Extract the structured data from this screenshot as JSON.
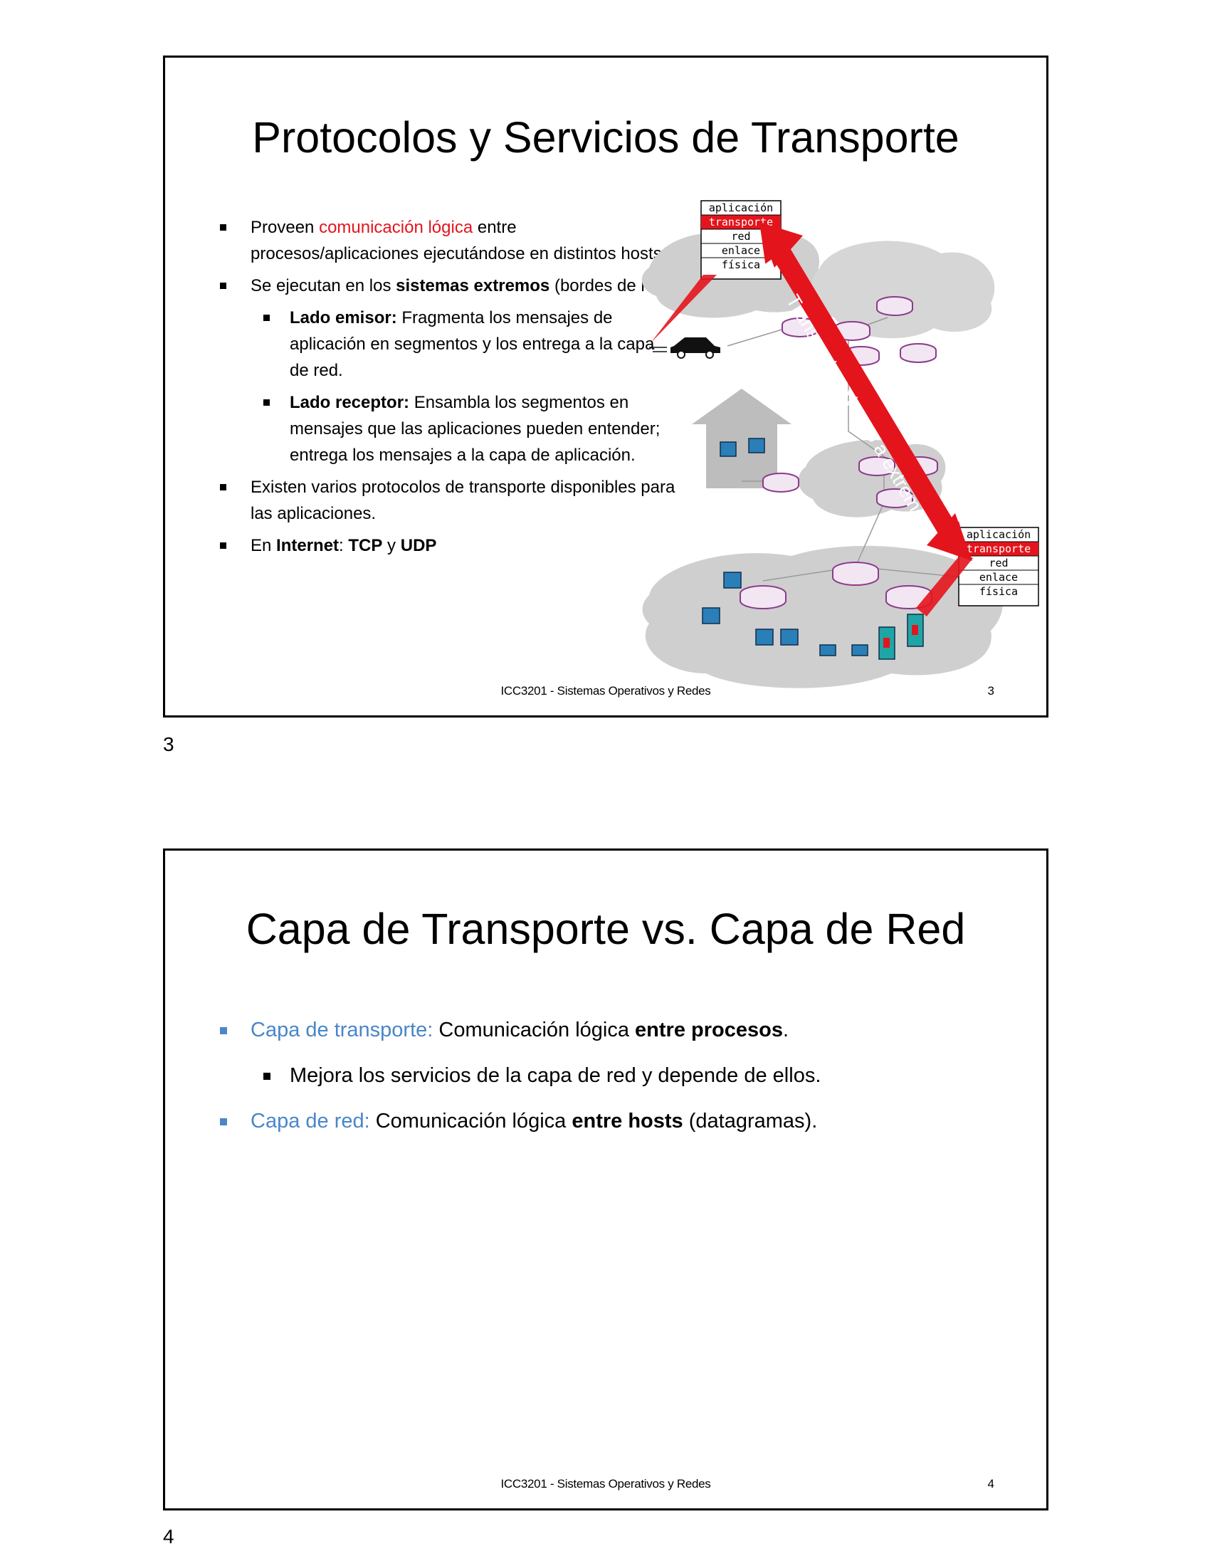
{
  "slides": [
    {
      "title": "Protocolos y Servicios de Transporte",
      "bullets": {
        "b1_pre": "Proveen ",
        "b1_red": "comunicación lógica",
        "b1_post": " entre procesos/aplicaciones ejecutándose en distintos hosts.",
        "b2_pre": "Se ejecutan en los ",
        "b2_bold": "sistemas extremos",
        "b2_post": " (bordes de red).",
        "b3_bold": "Lado emisor:",
        "b3_text": " Fragmenta los mensajes de aplicación en segmentos y los entrega a la capa de red.",
        "b4_bold": "Lado receptor:",
        "b4_text": " Ensambla los segmentos en mensajes que las aplicaciones pueden entender; entrega los mensajes a la capa de aplicación.",
        "b5": "Existen varios protocolos de transporte disponibles para las aplicaciones.",
        "b6_pre": "En ",
        "b6_internet": "Internet",
        "b6_colon": ": ",
        "b6_tcp": "TCP",
        "b6_y": " y ",
        "b6_udp": "UDP"
      },
      "diagram": {
        "arrow_label": "Transporte extremo a extremo",
        "stack_layers": [
          "aplicación",
          "transporte",
          "red",
          "enlace",
          "física"
        ],
        "highlight_color": "#e4141c",
        "router_color": "#8b3a8b"
      },
      "footer": "ICC3201 - Sistemas Operativos y Redes",
      "slide_number": "3"
    },
    {
      "title": "Capa de Transporte vs. Capa de Red",
      "bullets": {
        "b1_blue": "Capa de transporte:",
        "b1_text": " Comunicación lógica ",
        "b1_bold": "entre procesos",
        "b1_end": ".",
        "b2": "Mejora los servicios de la capa de red y depende de ellos.",
        "b3_blue": "Capa de red:",
        "b3_text": " Comunicación lógica ",
        "b3_bold": "entre hosts",
        "b3_end": " (datagramas)."
      },
      "footer": "ICC3201 - Sistemas Operativos y Redes",
      "slide_number": "4"
    }
  ],
  "page_numbers": [
    "3",
    "4"
  ]
}
